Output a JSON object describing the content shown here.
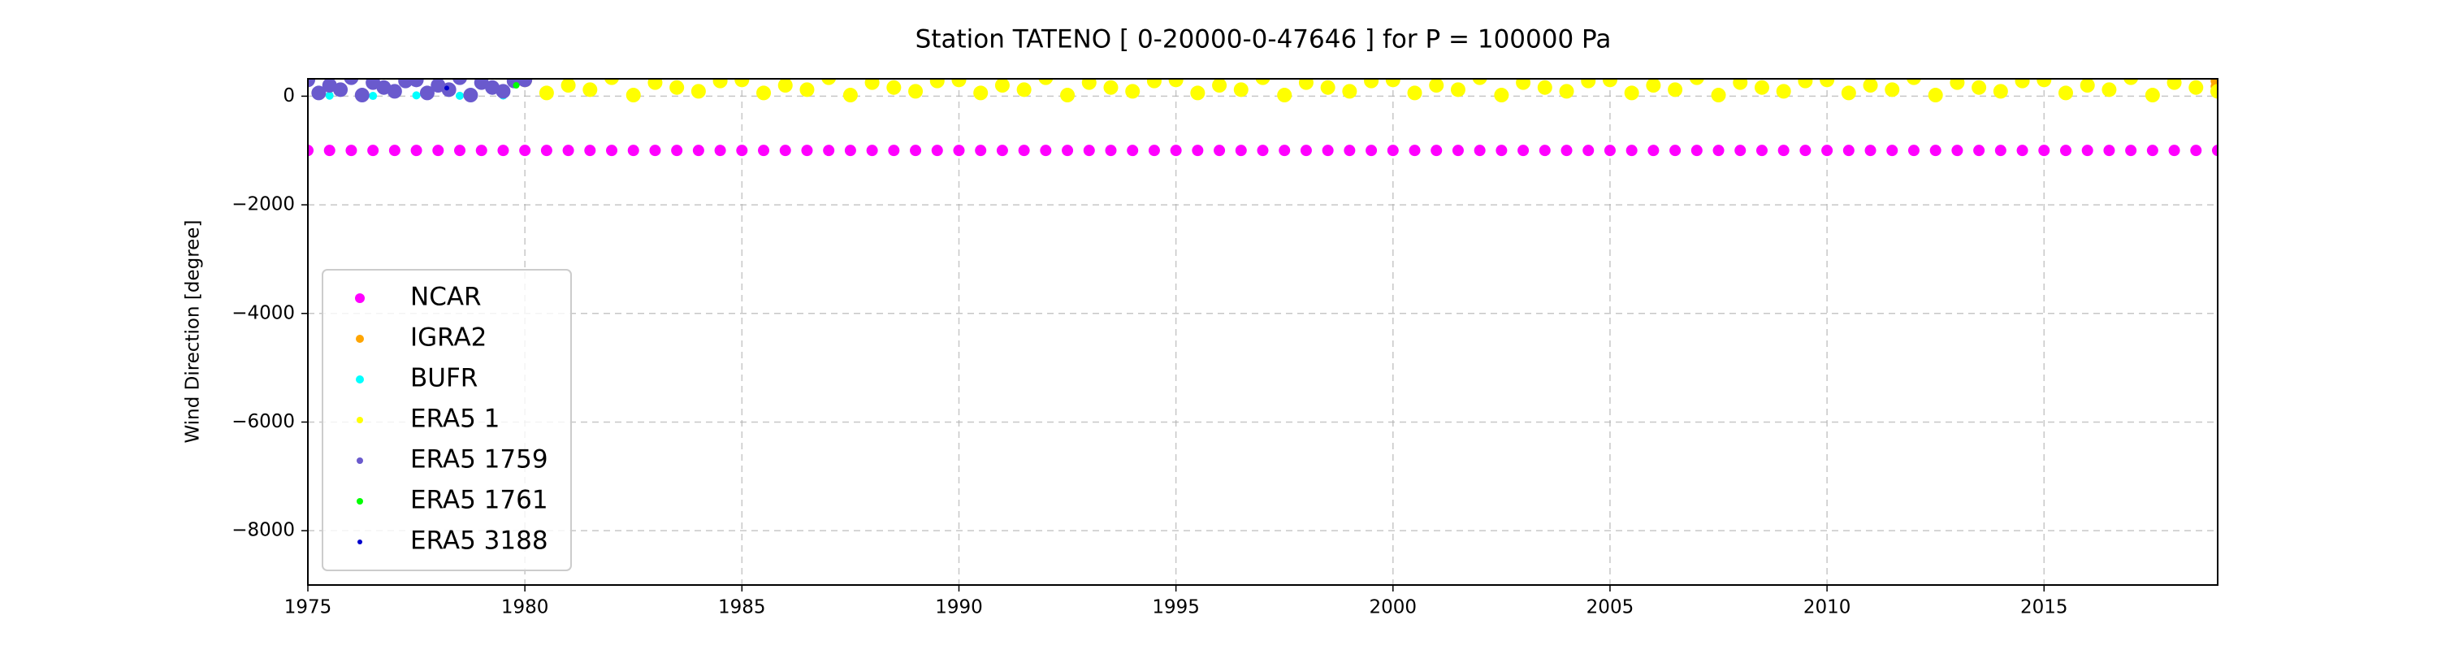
{
  "chart_data": {
    "type": "scatter",
    "title": "Station  TATENO [ 0-20000-0-47646 ]  for P = 100000 Pa",
    "y_label": "Wind Direction [degree]",
    "xlim": [
      1975,
      2019
    ],
    "ylim": [
      -9000,
      320
    ],
    "xticks": [
      1975,
      1980,
      1985,
      1990,
      1995,
      2000,
      2005,
      2010,
      2015
    ],
    "yticks": [
      {
        "value": -8000,
        "label": "−8000"
      },
      {
        "value": -6000,
        "label": "−6000"
      },
      {
        "value": -4000,
        "label": "−4000"
      },
      {
        "value": -2000,
        "label": "−2000"
      },
      0
    ],
    "grid": true,
    "legend": "lower left",
    "series": [
      {
        "name": "NCAR",
        "color": "#ff00ff",
        "x": [
          1975,
          1975.5,
          1976,
          1976.5,
          1977,
          1977.5,
          1978,
          1978.5,
          1979,
          1979.5,
          1980,
          1980.5,
          1981,
          1981.5,
          1982,
          1982.5,
          1983,
          1983.5,
          1984,
          1984.5,
          1985,
          1985.5,
          1986,
          1986.5,
          1987,
          1987.5,
          1988,
          1988.5,
          1989,
          1989.5,
          1990,
          1990.5,
          1991,
          1991.5,
          1992,
          1992.5,
          1993,
          1993.5,
          1994,
          1994.5,
          1995,
          1995.5,
          1996,
          1996.5,
          1997,
          1997.5,
          1998,
          1998.5,
          1999,
          1999.5,
          2000,
          2000.5,
          2001,
          2001.5,
          2002,
          2002.5,
          2003,
          2003.5,
          2004,
          2004.5,
          2005,
          2005.5,
          2006,
          2006.5,
          2007,
          2007.5,
          2008,
          2008.5,
          2009,
          2009.5,
          2010,
          2010.5,
          2011,
          2011.5,
          2012,
          2012.5,
          2013,
          2013.5,
          2014,
          2014.5,
          2015,
          2015.5,
          2016,
          2016.5,
          2017,
          2017.5,
          2018,
          2018.5,
          2019
        ],
        "values": [
          -999,
          -999,
          -999,
          -999,
          -999,
          -999,
          -999,
          -999,
          -999,
          -999,
          -999,
          -999,
          -999,
          -999,
          -999,
          -999,
          -999,
          -999,
          -999,
          -999,
          -999,
          -999,
          -999,
          -999,
          -999,
          -999,
          -999,
          -999,
          -999,
          -999,
          -999,
          -999,
          -999,
          -999,
          -999,
          -999,
          -999,
          -999,
          -999,
          -999,
          -999,
          -999,
          -999,
          -999,
          -999,
          -999,
          -999,
          -999,
          -999,
          -999,
          -999,
          -999,
          -999,
          -999,
          -999,
          -999,
          -999,
          -999,
          -999,
          -999,
          -999,
          -999,
          -999,
          -999,
          -999,
          -999,
          -999,
          -999,
          -999,
          -999,
          -999,
          -999,
          -999,
          -999,
          -999,
          -999,
          -999,
          -999,
          -999,
          -999,
          -999,
          -999,
          -999,
          -999,
          -999,
          -999,
          -999,
          -999,
          -999
        ]
      },
      {
        "name": "IGRA2",
        "color": "#ffa500",
        "x": [
          2018.95,
          2018.95,
          2018.95
        ],
        "values": [
          80,
          180,
          280
        ]
      },
      {
        "name": "BUFR",
        "color": "#00ffff",
        "x": [
          1975.5,
          1976.5,
          1977.5,
          1978.5,
          1979.5
        ],
        "values": [
          10,
          5,
          15,
          8,
          12
        ]
      },
      {
        "name": "ERA5 1",
        "color": "#ffff00",
        "x": [
          1980,
          1980.5,
          1981,
          1981.5,
          1982,
          1982.5,
          1983,
          1983.5,
          1984,
          1984.5,
          1985,
          1985.5,
          1986,
          1986.5,
          1987,
          1987.5,
          1988,
          1988.5,
          1989,
          1989.5,
          1990,
          1990.5,
          1991,
          1991.5,
          1992,
          1992.5,
          1993,
          1993.5,
          1994,
          1994.5,
          1995,
          1995.5,
          1996,
          1996.5,
          1997,
          1997.5,
          1998,
          1998.5,
          1999,
          1999.5,
          2000,
          2000.5,
          2001,
          2001.5,
          2002,
          2002.5,
          2003,
          2003.5,
          2004,
          2004.5,
          2005,
          2005.5,
          2006,
          2006.5,
          2007,
          2007.5,
          2008,
          2008.5,
          2009,
          2009.5,
          2010,
          2010.5,
          2011,
          2011.5,
          2012,
          2012.5,
          2013,
          2013.5,
          2014,
          2014.5,
          2015,
          2015.5,
          2016,
          2016.5,
          2017,
          2017.5,
          2018,
          2018.5,
          2019
        ],
        "values": [
          300,
          60,
          200,
          120,
          340,
          20,
          250,
          160,
          90,
          280,
          300,
          60,
          200,
          120,
          340,
          20,
          250,
          160,
          90,
          280,
          300,
          60,
          200,
          120,
          340,
          20,
          250,
          160,
          90,
          280,
          300,
          60,
          200,
          120,
          340,
          20,
          250,
          160,
          90,
          280,
          300,
          60,
          200,
          120,
          340,
          20,
          250,
          160,
          90,
          280,
          300,
          60,
          200,
          120,
          340,
          20,
          250,
          160,
          90,
          280,
          300,
          60,
          200,
          120,
          340,
          20,
          250,
          160,
          90,
          280,
          300,
          60,
          200,
          120,
          340,
          20,
          250,
          160,
          90
        ]
      },
      {
        "name": "ERA5 1759",
        "color": "#6a5acd",
        "x": [
          1975,
          1975.25,
          1975.5,
          1975.75,
          1976,
          1976.25,
          1976.5,
          1976.75,
          1977,
          1977.25,
          1977.5,
          1977.75,
          1978,
          1978.25,
          1978.5,
          1978.75,
          1979,
          1979.25,
          1979.5,
          1979.75,
          1980
        ],
        "values": [
          300,
          60,
          200,
          120,
          340,
          20,
          250,
          160,
          90,
          280,
          300,
          60,
          200,
          120,
          340,
          20,
          250,
          160,
          90,
          280,
          300
        ]
      },
      {
        "name": "ERA5 1761",
        "color": "#00ff00",
        "x": [
          1979.8
        ],
        "values": [
          200
        ]
      },
      {
        "name": "ERA5 3188",
        "color": "#0000cd",
        "x": [
          1978.2
        ],
        "values": [
          150
        ]
      }
    ]
  }
}
